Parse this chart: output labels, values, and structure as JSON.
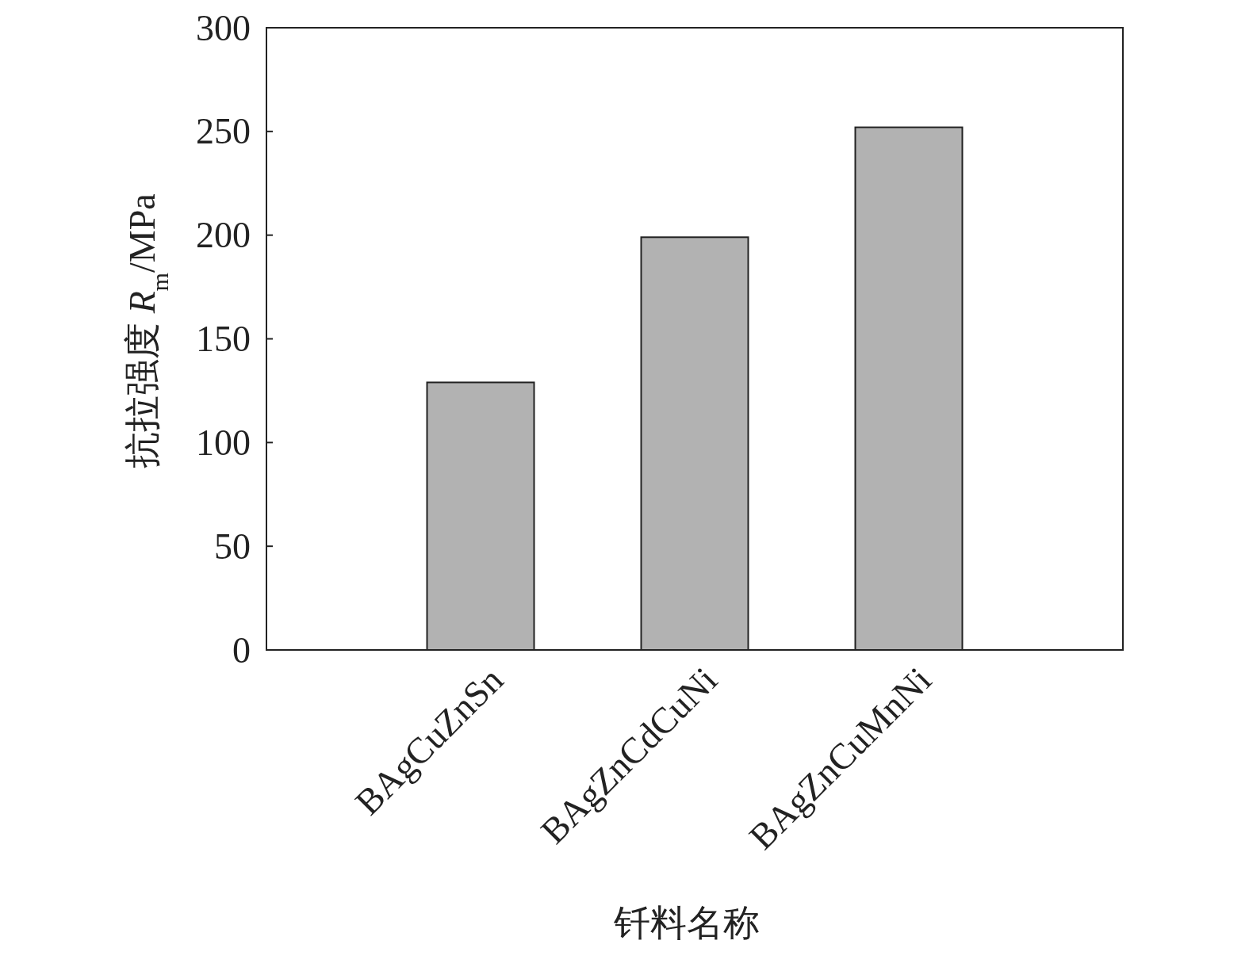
{
  "chart_data": {
    "type": "bar",
    "xlabel": "钎料名称",
    "ylabel": "抗拉强度 *R*$_{m}$/MPa",
    "categories": [
      "BAgCuZnSn",
      "BAgZnCdCuNi",
      "BAgZnCuMnNi"
    ],
    "values": [
      129,
      199,
      252
    ],
    "color": "#b2b2b2",
    "ylim": [
      0,
      300
    ],
    "yticks": [
      0,
      50,
      100,
      150,
      200,
      250,
      300
    ],
    "grid": false
  }
}
